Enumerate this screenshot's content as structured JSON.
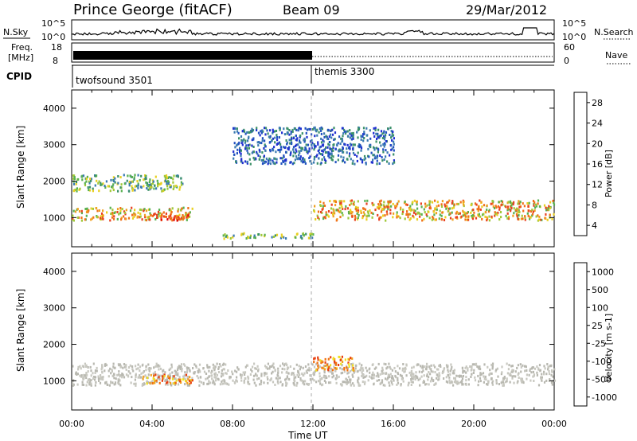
{
  "header": {
    "station": "Prince George (fitACF)",
    "beam": "Beam 09",
    "date": "29/Mar/2012"
  },
  "noise_panel": {
    "left_label": "N.Sky",
    "right_label": "N.Search",
    "left_ticks": [
      "10^5",
      "10^0"
    ],
    "right_ticks": [
      "10^5",
      "10^0"
    ]
  },
  "freq_panel": {
    "left_label_1": "Freq.",
    "left_label_2": "[MHz]",
    "left_ticks": [
      "18",
      "8"
    ],
    "right_ticks": [
      "60",
      "0"
    ],
    "right_label": "Nave"
  },
  "cpid_panel": {
    "label": "CPID",
    "programs": [
      {
        "name": "twofsound 3501",
        "start_hour": 0
      },
      {
        "name": "themis 3300",
        "start_hour": 12
      }
    ]
  },
  "colors": {
    "power_scale": [
      "#2030d0",
      "#2050c0",
      "#3a7ab0",
      "#3a9068",
      "#58b050",
      "#a0c838",
      "#e8d020",
      "#f0a020",
      "#f07018",
      "#e84020",
      "#e00000"
    ],
    "velocity_scale": [
      "#1030c8",
      "#2a6ab0",
      "#2a7a60",
      "#208040",
      "#40a020",
      "#60c840",
      "#b8b8b0",
      "#c8c8c0",
      "#f0e020",
      "#f0a020",
      "#f07010",
      "#e84010",
      "#d00000"
    ]
  },
  "chart_data": [
    {
      "type": "heatmap",
      "title": "",
      "quantity": "Power",
      "xlabel": "",
      "ylabel": "Slant Range [km]",
      "xlim": [
        0,
        24
      ],
      "ylim": [
        200,
        4500
      ],
      "x_ticks": [
        "00:00",
        "04:00",
        "08:00",
        "12:00",
        "16:00",
        "20:00",
        "00:00"
      ],
      "y_ticks": [
        "1000",
        "2000",
        "3000",
        "4000"
      ],
      "colorbar": {
        "label": "Power [dB]",
        "ticks": [
          "28",
          "24",
          "20",
          "16",
          "12",
          "8",
          "4"
        ],
        "range": [
          0,
          32
        ]
      },
      "echo_bands": [
        {
          "t0": 0.0,
          "t1": 6.0,
          "r0": 950,
          "r1": 1300,
          "level": "high"
        },
        {
          "t0": 3.8,
          "t1": 5.8,
          "r0": 950,
          "r1": 1150,
          "level": "very high"
        },
        {
          "t0": 0.0,
          "t1": 5.5,
          "r0": 1750,
          "r1": 2200,
          "level": "medium"
        },
        {
          "t0": 7.5,
          "t1": 12.0,
          "r0": 450,
          "r1": 600,
          "level": "medium"
        },
        {
          "t0": 12.0,
          "t1": 24.0,
          "r0": 950,
          "r1": 1500,
          "level": "high"
        },
        {
          "t0": 8.0,
          "t1": 16.0,
          "r0": 2500,
          "r1": 3500,
          "level": "low"
        }
      ]
    },
    {
      "type": "heatmap",
      "title": "",
      "quantity": "Velocity",
      "xlabel": "Time UT",
      "ylabel": "Slant Range [km]",
      "xlim": [
        0,
        24
      ],
      "ylim": [
        200,
        4500
      ],
      "x_ticks": [
        "00:00",
        "04:00",
        "08:00",
        "12:00",
        "16:00",
        "20:00",
        "00:00"
      ],
      "y_ticks": [
        "1000",
        "2000",
        "3000",
        "4000"
      ],
      "colorbar": {
        "label": "Velocity [m s-1]",
        "ticks": [
          "1000",
          "500",
          "100",
          "25",
          "-25",
          "-100",
          "-500",
          "-1000"
        ]
      },
      "echo_bands": [
        {
          "t0": 0.0,
          "t1": 24.0,
          "r0": 900,
          "r1": 1500,
          "level": "ground scatter (grey)"
        },
        {
          "t0": 3.5,
          "t1": 6.0,
          "r0": 950,
          "r1": 1200,
          "level": "negative (orange)"
        },
        {
          "t0": 12.0,
          "t1": 14.0,
          "r0": 1300,
          "r1": 1700,
          "level": "negative (orange)"
        }
      ]
    }
  ]
}
